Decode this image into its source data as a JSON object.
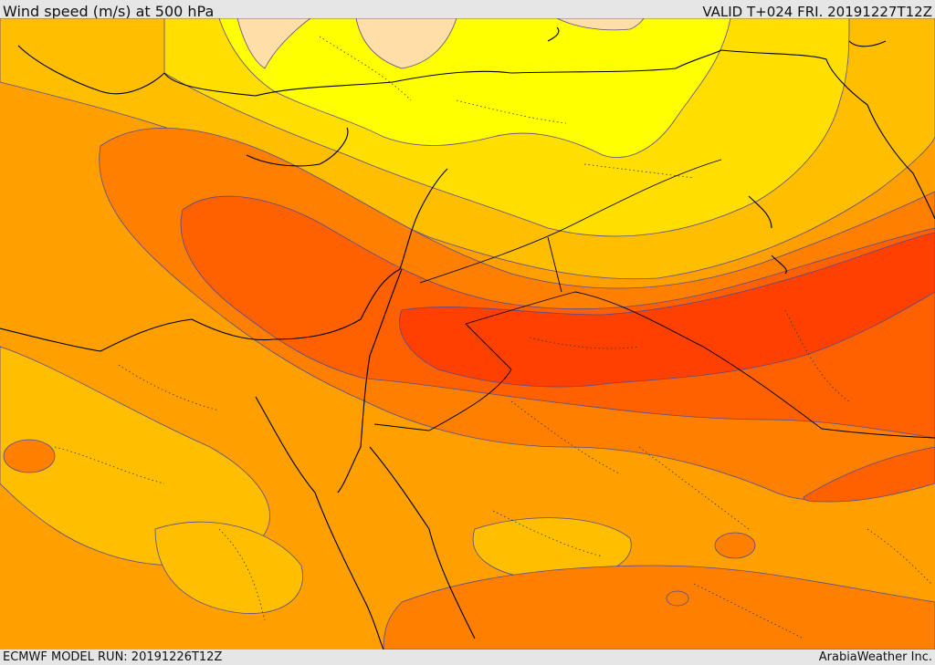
{
  "header": {
    "title": "Wind speed (m/s) at 500 hPa",
    "valid": "VALID T+024 FRI. 20191227T12Z"
  },
  "footer": {
    "model_run": "ECMWF MODEL RUN: 20191226T12Z",
    "credit": "ArabiaWeather Inc."
  },
  "map": {
    "variable": "wind speed",
    "level": "500 hPa",
    "units": "m/s",
    "colors": {
      "very_light": "#ffdea8",
      "light": "#ffff00",
      "pale": "#ffde00",
      "mid1": "#ffbf00",
      "mid2": "#ffa000",
      "mid3": "#ff8000",
      "high1": "#ff6000",
      "high2": "#ff4000",
      "land_outline": "#000000",
      "contour": "#5a4a8a"
    }
  }
}
